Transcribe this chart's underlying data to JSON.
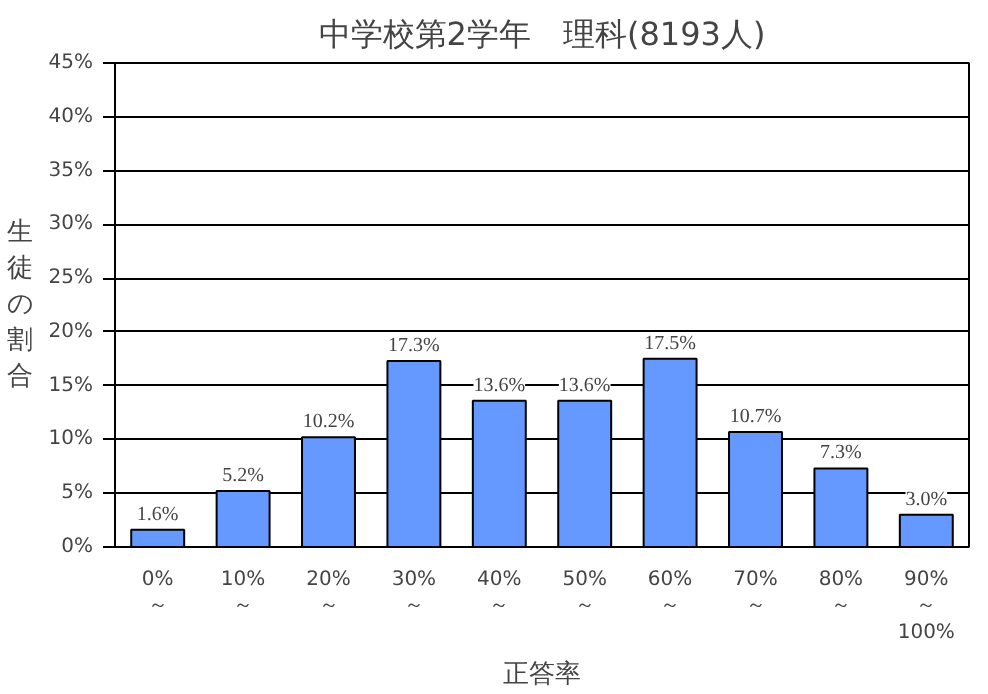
{
  "chart_data": {
    "type": "bar",
    "title": "中学校第2学年　理科(8193人)",
    "xlabel": "正答率",
    "ylabel": "生徒の割合",
    "categories": [
      "0%\n～",
      "10%\n～",
      "20%\n～",
      "30%\n～",
      "40%\n～",
      "50%\n～",
      "60%\n～",
      "70%\n～",
      "80%\n～",
      "90%\n～\n100%"
    ],
    "values": [
      1.6,
      5.2,
      10.2,
      17.3,
      13.6,
      13.6,
      17.5,
      10.7,
      7.3,
      3.0
    ],
    "value_labels": [
      "1.6%",
      "5.2%",
      "10.2%",
      "17.3%",
      "13.6%",
      "13.6%",
      "17.5%",
      "10.7%",
      "7.3%",
      "3.0%"
    ],
    "color": "#6699ff",
    "ylim": [
      0,
      45
    ],
    "yticks": [
      {
        "value": 0,
        "label": "0%"
      },
      {
        "value": 5,
        "label": "5%"
      },
      {
        "value": 10,
        "label": "10%"
      },
      {
        "value": 15,
        "label": "15%"
      },
      {
        "value": 20,
        "label": "20%"
      },
      {
        "value": 25,
        "label": "25%"
      },
      {
        "value": 30,
        "label": "30%"
      },
      {
        "value": 35,
        "label": "35%"
      },
      {
        "value": 40,
        "label": "40%"
      },
      {
        "value": 45,
        "label": "45%"
      }
    ],
    "grid": "y"
  }
}
